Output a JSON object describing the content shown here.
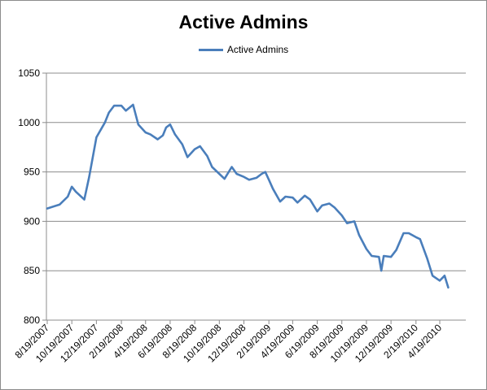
{
  "chart_data": {
    "type": "line",
    "title": "Active Admins",
    "xlabel": "",
    "ylabel": "",
    "ylim": [
      800,
      1050
    ],
    "yticks": [
      800,
      850,
      900,
      950,
      1000,
      1050
    ],
    "xticks": [
      "8/19/2007",
      "10/19/2007",
      "12/19/2007",
      "2/19/2008",
      "4/19/2008",
      "6/19/2008",
      "8/19/2008",
      "10/19/2008",
      "12/19/2008",
      "2/19/2009",
      "4/19/2009",
      "6/19/2009",
      "8/19/2009",
      "10/19/2009",
      "12/19/2009",
      "2/19/2010",
      "4/19/2010"
    ],
    "grid": true,
    "legend": "top-center",
    "series": [
      {
        "name": "Active Admins",
        "color": "#4a7ebb",
        "x": [
          "8/19/2007",
          "9/19/2007",
          "10/9/2007",
          "10/19/2007",
          "10/29/2007",
          "11/19/2007",
          "12/1/2007",
          "12/19/2007",
          "1/9/2008",
          "1/19/2008",
          "2/1/2008",
          "2/19/2008",
          "3/1/2008",
          "3/19/2008",
          "4/1/2008",
          "4/19/2008",
          "5/1/2008",
          "5/19/2008",
          "6/1/2008",
          "6/9/2008",
          "6/19/2008",
          "7/1/2008",
          "7/19/2008",
          "8/1/2008",
          "8/19/2008",
          "9/1/2008",
          "9/19/2008",
          "10/1/2008",
          "10/19/2008",
          "11/1/2008",
          "11/19/2008",
          "12/1/2008",
          "12/19/2008",
          "1/1/2009",
          "1/19/2009",
          "2/1/2009",
          "2/10/2009",
          "2/19/2009",
          "3/1/2009",
          "3/19/2009",
          "4/1/2009",
          "4/19/2009",
          "5/1/2009",
          "5/19/2009",
          "6/1/2009",
          "6/19/2009",
          "7/1/2009",
          "7/19/2009",
          "8/1/2009",
          "8/19/2009",
          "9/1/2009",
          "9/19/2009",
          "10/1/2009",
          "10/19/2009",
          "11/1/2009",
          "11/19/2009",
          "11/25/2009",
          "12/1/2009",
          "12/19/2009",
          "1/1/2010",
          "1/19/2010",
          "2/1/2010",
          "2/19/2010",
          "3/1/2010",
          "3/19/2010",
          "4/1/2010",
          "4/19/2010",
          "5/1/2010",
          "5/10/2010"
        ],
        "values": [
          913,
          917,
          925,
          935,
          930,
          922,
          945,
          985,
          1000,
          1010,
          1017,
          1017,
          1012,
          1018,
          998,
          990,
          988,
          983,
          987,
          995,
          998,
          988,
          978,
          965,
          973,
          976,
          966,
          955,
          948,
          943,
          955,
          948,
          945,
          942,
          944,
          948,
          950,
          942,
          933,
          920,
          925,
          924,
          919,
          926,
          922,
          910,
          916,
          918,
          914,
          906,
          898,
          900,
          886,
          872,
          865,
          864,
          850,
          865,
          864,
          871,
          888,
          888,
          884,
          882,
          862,
          845,
          840,
          845,
          833
        ]
      }
    ]
  }
}
